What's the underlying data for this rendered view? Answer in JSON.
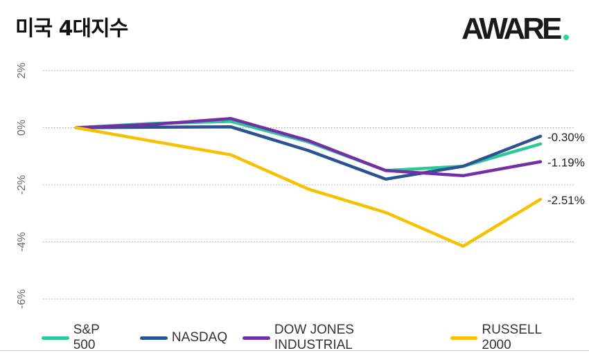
{
  "title": "미국 4대지수",
  "logo": {
    "text": "AWARE",
    "accent_color": "#2fd39c"
  },
  "chart_data": {
    "type": "line",
    "title": "미국 4대지수",
    "xlabel": "",
    "ylabel": "",
    "ylim": [
      -6,
      2
    ],
    "y_ticks": [
      2,
      0,
      -2,
      -4,
      -6
    ],
    "y_tick_labels": [
      "2%",
      "0%",
      "-2%",
      "-4%",
      "-6%"
    ],
    "grid": true,
    "legend_position": "bottom",
    "x": [
      0,
      1,
      2,
      3,
      4,
      5,
      6
    ],
    "series": [
      {
        "name": "S&P 500",
        "color": "#2bc99a",
        "values": [
          0,
          0.15,
          0.22,
          -0.5,
          -1.5,
          -1.35,
          -0.57
        ]
      },
      {
        "name": "NASDAQ",
        "color": "#2b5391",
        "values": [
          0,
          0.02,
          0.03,
          -0.8,
          -1.8,
          -1.35,
          -0.3
        ]
      },
      {
        "name": "DOW JONES INDUSTRIAL",
        "color": "#7230a4",
        "values": [
          0,
          0.12,
          0.32,
          -0.45,
          -1.5,
          -1.68,
          -1.19
        ]
      },
      {
        "name": "RUSSELL 2000",
        "color": "#f6c100",
        "values": [
          0,
          -0.48,
          -0.95,
          -2.15,
          -2.97,
          -4.15,
          -2.51
        ]
      }
    ],
    "end_labels": [
      "-0.30%",
      "-1.19%",
      "-2.51%"
    ]
  }
}
